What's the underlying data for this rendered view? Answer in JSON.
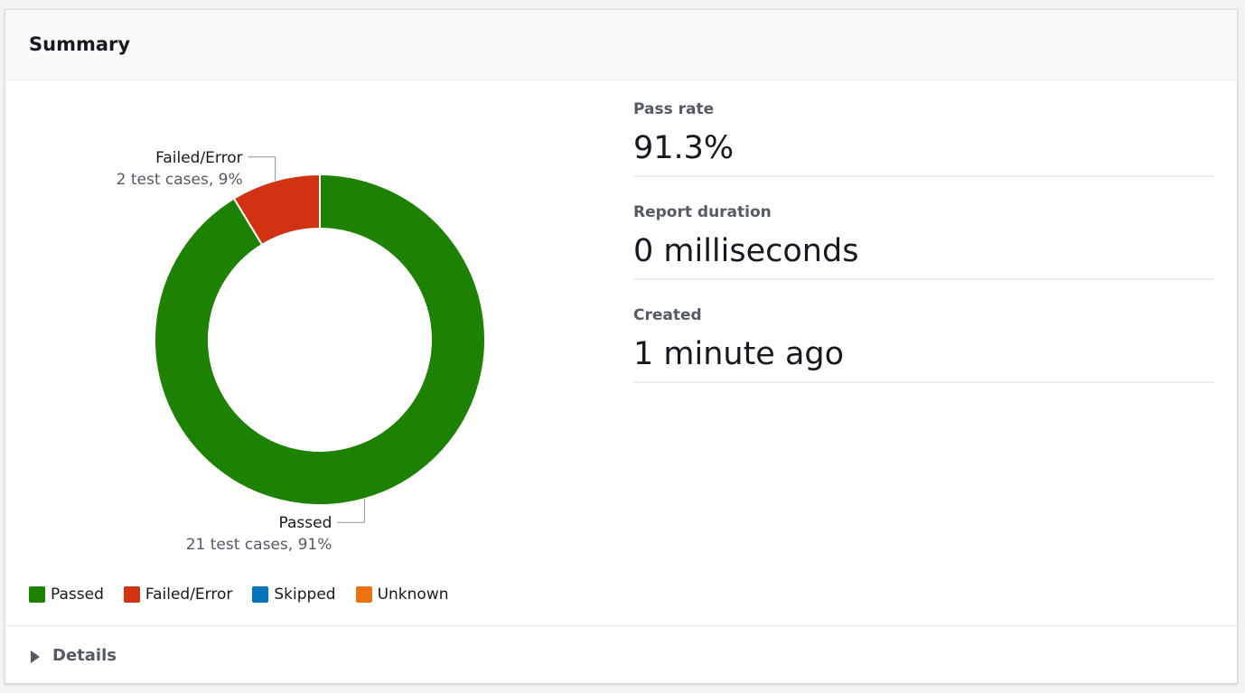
{
  "header": {
    "title": "Summary"
  },
  "chart_data": {
    "type": "donut",
    "categories": [
      "Passed",
      "Failed/Error",
      "Skipped",
      "Unknown"
    ],
    "values": [
      21,
      2,
      0,
      0
    ],
    "value_labels": [
      "21 test cases, 91%",
      "2 test cases, 9%",
      null,
      null
    ],
    "colors": [
      "#1d8102",
      "#d13212",
      "#0073bb",
      "#ec7211"
    ]
  },
  "stats": [
    {
      "label": "Pass rate",
      "value": "91.3%"
    },
    {
      "label": "Report duration",
      "value": "0 milliseconds"
    },
    {
      "label": "Created",
      "value": "1 minute ago"
    }
  ],
  "footer": {
    "title": "Details"
  }
}
